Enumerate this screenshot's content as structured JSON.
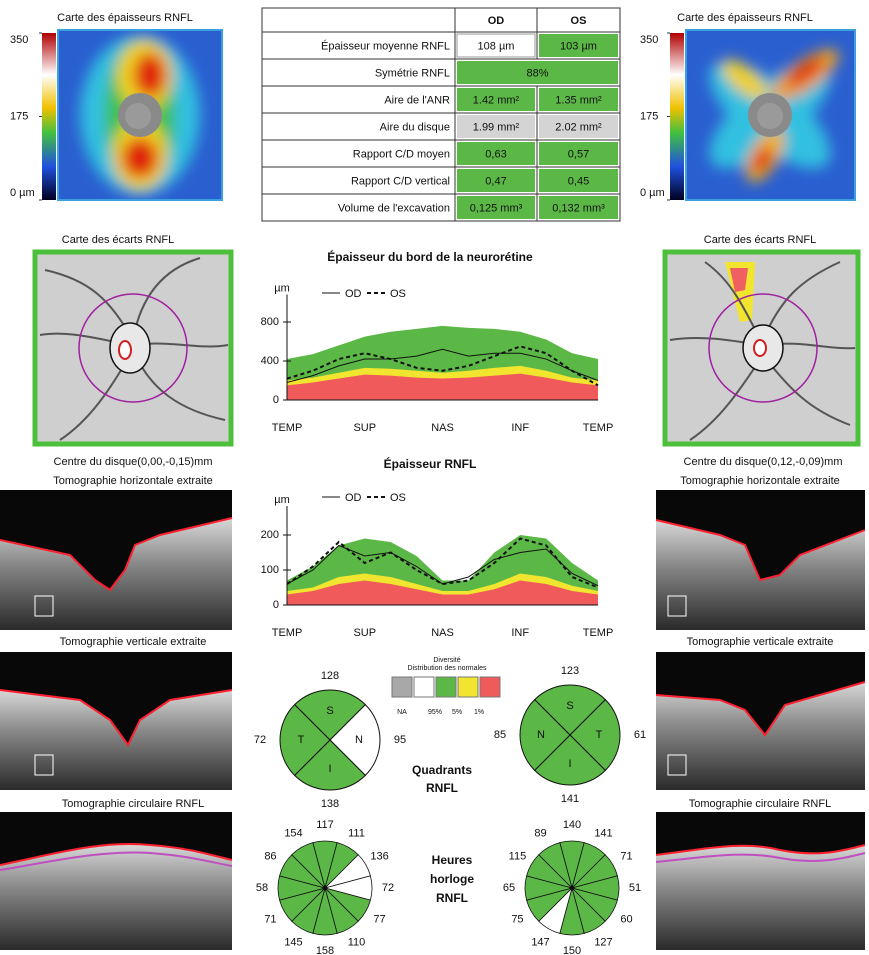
{
  "left_map": {
    "title": "Carte des épaisseurs RNFL",
    "lim": [
      0,
      350
    ],
    "ticks": [
      350,
      175,
      {
        "value": 0,
        "label": "0 µm"
      }
    ]
  },
  "right_map": {
    "title": "Carte des épaisseurs RNFL",
    "lim": [
      0,
      350
    ],
    "ticks": [
      350,
      175,
      {
        "value": 0,
        "label": "0 µm"
      }
    ]
  },
  "table": {
    "header": [
      "OD",
      "OS"
    ],
    "rows": [
      {
        "label": "Épaisseur moyenne RNFL",
        "cells": [
          {
            "text": "108 µm",
            "color": "#ffffff"
          },
          {
            "text": "103 µm",
            "color": "#5cb846"
          }
        ]
      },
      {
        "label": "Symétrie RNFL",
        "cells": [
          {
            "text": "88%",
            "color": "#5cb846"
          }
        ]
      },
      {
        "label": "Aire de l'ANR",
        "cells": [
          {
            "text": "1.42 mm²",
            "color": "#5cb846"
          },
          {
            "text": "1.35 mm²",
            "color": "#5cb846"
          }
        ]
      },
      {
        "label": "Aire du disque",
        "cells": [
          {
            "text": "1.99 mm²",
            "color": "#d4d4d4"
          },
          {
            "text": "2.02 mm²",
            "color": "#d4d4d4"
          }
        ]
      },
      {
        "label": "Rapport C/D moyen",
        "cells": [
          {
            "text": "0,63",
            "color": "#5cb846"
          },
          {
            "text": "0,57",
            "color": "#5cb846"
          }
        ]
      },
      {
        "label": "Rapport C/D vertical",
        "cells": [
          {
            "text": "0,47",
            "color": "#5cb846"
          },
          {
            "text": "0,45",
            "color": "#5cb846"
          }
        ]
      },
      {
        "label": "Volume de l'excavation",
        "cells": [
          {
            "text": "0,125 mm³",
            "color": "#5cb846"
          },
          {
            "text": "0,132 mm³",
            "color": "#5cb846"
          }
        ]
      }
    ]
  },
  "left_deviation": {
    "title": "Carte des écarts RNFL",
    "center": "Centre du disque(0,00,-0,15)mm"
  },
  "right_deviation": {
    "title": "Carte des écarts RNFL",
    "center": "Centre du disque(0,12,-0,09)mm"
  },
  "left_scans": [
    "Tomographie horizontale extraite",
    "Tomographie verticale extraite",
    "Tomographie circulaire RNFL"
  ],
  "right_scans": [
    "Tomographie horizontale extraite",
    "Tomographie verticale extraite",
    "Tomographie circulaire RNFL"
  ],
  "rim_chart": {
    "type": "line",
    "title": "Épaisseur du bord de la neurorétine",
    "y_label": "µm",
    "categories": [
      "TEMP",
      null,
      null,
      "SUP",
      null,
      null,
      "NAS",
      null,
      null,
      "INF",
      null,
      null,
      "TEMP"
    ],
    "ylim": [
      0,
      1000
    ],
    "yticks": [
      0,
      400,
      800
    ],
    "bands": [
      {
        "color": "#5cb846",
        "values": [
          420,
          470,
          560,
          650,
          700,
          730,
          760,
          740,
          730,
          700,
          620,
          480,
          420
        ]
      },
      {
        "color": "#f2e530",
        "values": [
          200,
          230,
          280,
          330,
          320,
          300,
          280,
          300,
          330,
          350,
          300,
          230,
          200
        ]
      },
      {
        "color": "#f05a5a",
        "values": [
          150,
          180,
          220,
          260,
          250,
          230,
          220,
          230,
          250,
          270,
          230,
          180,
          150
        ]
      }
    ],
    "series": [
      {
        "name": "OD",
        "dash": false,
        "values": [
          180,
          250,
          350,
          420,
          420,
          450,
          520,
          450,
          480,
          480,
          420,
          300,
          200
        ]
      },
      {
        "name": "OS",
        "dash": true,
        "values": [
          220,
          300,
          420,
          480,
          420,
          330,
          300,
          350,
          450,
          550,
          480,
          300,
          150
        ]
      }
    ]
  },
  "rnfl_chart": {
    "type": "line",
    "title": "Épaisseur RNFL",
    "y_label": "µm",
    "categories": [
      "TEMP",
      null,
      null,
      "SUP",
      null,
      null,
      "NAS",
      null,
      null,
      "INF",
      null,
      null,
      "TEMP"
    ],
    "ylim": [
      0,
      260
    ],
    "yticks": [
      0,
      100,
      200
    ],
    "bands": [
      {
        "color": "#5cb846",
        "values": [
          70,
          110,
          170,
          190,
          180,
          140,
          70,
          70,
          150,
          200,
          190,
          120,
          70
        ]
      },
      {
        "color": "#f2e530",
        "values": [
          40,
          50,
          80,
          90,
          80,
          60,
          40,
          40,
          60,
          90,
          80,
          55,
          40
        ]
      },
      {
        "color": "#f05a5a",
        "values": [
          30,
          40,
          60,
          70,
          60,
          45,
          30,
          30,
          45,
          70,
          60,
          40,
          30
        ]
      }
    ],
    "series": [
      {
        "name": "OD",
        "dash": false,
        "values": [
          60,
          100,
          170,
          140,
          150,
          110,
          60,
          80,
          130,
          150,
          160,
          90,
          55
        ]
      },
      {
        "name": "OS",
        "dash": true,
        "values": [
          60,
          110,
          180,
          120,
          150,
          100,
          60,
          70,
          120,
          190,
          170,
          80,
          50
        ]
      }
    ]
  },
  "diversity_legend": {
    "title": "Diversité",
    "subtitle": "Distribution des normales",
    "colors": [
      "#a8a8a8",
      "#ffffff",
      "#5cb846",
      "#f2e530",
      "#f05a5a"
    ],
    "labels": [
      "NA",
      "95%",
      "5%",
      "1%"
    ]
  },
  "quadrants": {
    "title": [
      "Quadrants",
      "RNFL"
    ],
    "od": [
      {
        "label": "S",
        "value": 128,
        "color": "#5cb846"
      },
      {
        "label": "N",
        "value": 95,
        "color": "#ffffff"
      },
      {
        "label": "I",
        "value": 138,
        "color": "#5cb846"
      },
      {
        "label": "T",
        "value": 72,
        "color": "#5cb846"
      }
    ],
    "os": [
      {
        "label": "S",
        "value": 123,
        "color": "#5cb846"
      },
      {
        "label": "T",
        "value": 61,
        "color": "#5cb846"
      },
      {
        "label": "I",
        "value": 141,
        "color": "#5cb846"
      },
      {
        "label": "N",
        "value": 85,
        "color": "#5cb846"
      }
    ]
  },
  "clock_hours": {
    "title": [
      "Heures",
      "horloge",
      "RNFL"
    ],
    "od": {
      "values": [
        117,
        111,
        136,
        72,
        77,
        110,
        158,
        145,
        71,
        58,
        86,
        154
      ],
      "colors": [
        "#5cb846",
        "#5cb846",
        "#ffffff",
        "#ffffff",
        "#5cb846",
        "#5cb846",
        "#5cb846",
        "#5cb846",
        "#5cb846",
        "#5cb846",
        "#5cb846",
        "#5cb846"
      ]
    },
    "os": {
      "values": [
        140,
        141,
        71,
        51,
        60,
        127,
        150,
        147,
        75,
        65,
        115,
        89
      ],
      "colors": [
        "#5cb846",
        "#5cb846",
        "#5cb846",
        "#5cb846",
        "#5cb846",
        "#5cb846",
        "#5cb846",
        "#ffffff",
        "#5cb846",
        "#5cb846",
        "#5cb846",
        "#5cb846"
      ]
    }
  }
}
